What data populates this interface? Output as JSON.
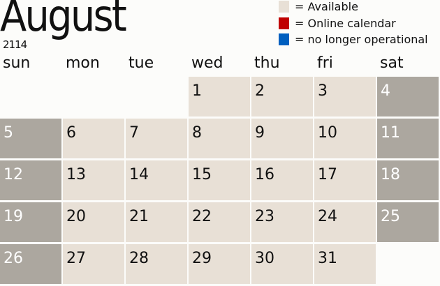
{
  "title": "August",
  "year": "2114",
  "legend": [
    {
      "label": "= Available",
      "color": "#e8e0d6"
    },
    {
      "label": "= Online calendar",
      "color": "#c00000"
    },
    {
      "label": "= no longer operational",
      "color": "#005fbf"
    }
  ],
  "weekdays": [
    "sun",
    "mon",
    "tue",
    "wed",
    "thu",
    "fri",
    "sat"
  ],
  "first_weekday_index": 3,
  "days": [
    "1",
    "2",
    "3",
    "4",
    "5",
    "6",
    "7",
    "8",
    "9",
    "10",
    "11",
    "12",
    "13",
    "14",
    "15",
    "16",
    "17",
    "18",
    "19",
    "20",
    "21",
    "22",
    "23",
    "24",
    "25",
    "26",
    "27",
    "28",
    "29",
    "30",
    "31"
  ],
  "colors": {
    "weekday": "#e8e0d6",
    "weekend": "#aca79f"
  }
}
